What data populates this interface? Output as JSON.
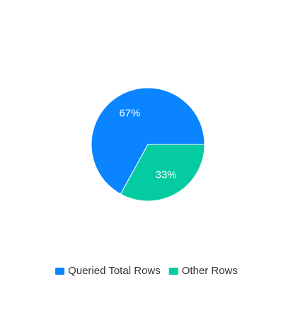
{
  "chart_data": {
    "type": "pie",
    "values": [
      67,
      33
    ],
    "slice_labels": [
      "67%",
      "33%"
    ],
    "legend": [
      "Queried Total Rows",
      "Other Rows"
    ],
    "colors": [
      "#0A84FF",
      "#05CBA1"
    ],
    "legend_placement": "bottom"
  }
}
